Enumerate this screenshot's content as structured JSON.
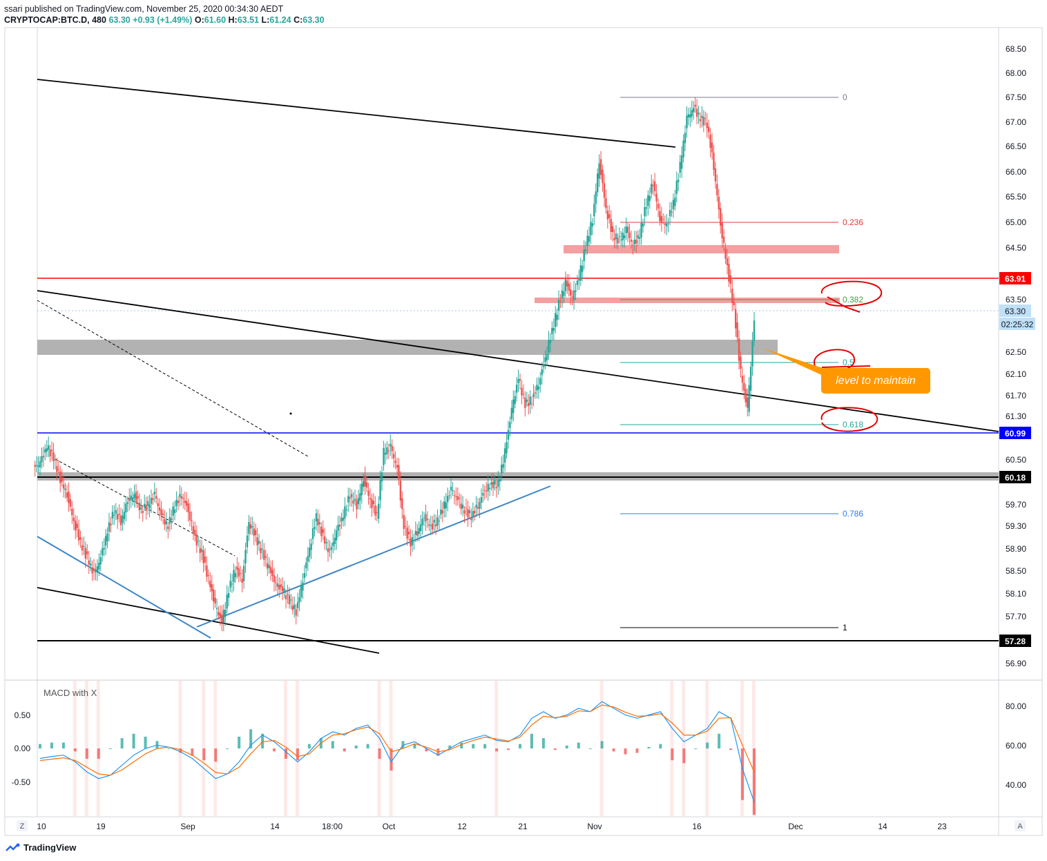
{
  "header": {
    "published": "ssari published on TradingView.com, November 25, 2020 00:34:30 AEDT",
    "symbol": "CRYPTOCAP:BTC.D, 480",
    "last": "63.30",
    "change": "+0.93 (+1.49%)",
    "o_label": "O:",
    "o": "61.60",
    "h_label": "H:",
    "h": "63.51",
    "l_label": "L:",
    "l": "61.24",
    "c_label": "C:",
    "c": "63.30"
  },
  "footer": {
    "brand": "TradingView"
  },
  "colors": {
    "up": "#26a69a",
    "down": "#ef5350",
    "red_line": "#ff0000",
    "blue_line": "#0000ff",
    "trend_blue": "#3d85c6",
    "annotation_orange": "#ff9800",
    "zone_pink": "#f4a0a0",
    "zone_gray": "#b2b2b2"
  },
  "chart_data": {
    "type": "candlestick",
    "price_axis": {
      "ticks": [
        "68.50",
        "68.00",
        "67.50",
        "67.00",
        "66.50",
        "66.00",
        "65.50",
        "65.00",
        "64.50",
        "63.50",
        "62.50",
        "62.10",
        "61.70",
        "61.30",
        "60.50",
        "59.70",
        "59.30",
        "58.90",
        "58.50",
        "58.10",
        "57.70",
        "56.90"
      ],
      "range": [
        56.6,
        68.9
      ]
    },
    "time_axis": {
      "ticks": [
        "10",
        "19",
        "Sep",
        "14",
        "18:00",
        "Oct",
        "12",
        "21",
        "Nov",
        "16",
        "Dec",
        "14",
        "23"
      ]
    },
    "price_labels": [
      {
        "value": "63.91",
        "style": "red"
      },
      {
        "value": "63.30",
        "style": "light-blue"
      },
      {
        "value": "02:25:32",
        "style": "light-blue"
      },
      {
        "value": "60.99",
        "style": "blue"
      },
      {
        "value": "60.18",
        "style": "black"
      },
      {
        "value": "57.28",
        "style": "black"
      }
    ],
    "horizontal_lines": [
      {
        "value": 63.91,
        "color": "red"
      },
      {
        "value": 60.99,
        "color": "blue"
      },
      {
        "value": 60.18,
        "color": "black"
      },
      {
        "value": 57.28,
        "color": "black"
      }
    ],
    "fibonacci": [
      {
        "level": "0",
        "price": 67.5
      },
      {
        "level": "0.236",
        "price": 65.0
      },
      {
        "level": "0.382",
        "price": 63.5
      },
      {
        "level": "0.5",
        "price": 62.35
      },
      {
        "level": "0.618",
        "price": 61.15
      },
      {
        "level": "0.786",
        "price": 59.5
      },
      {
        "level": "1",
        "price": 57.5
      }
    ],
    "zones": [
      {
        "color": "pink",
        "price": 64.5
      },
      {
        "color": "pink",
        "price": 63.5
      },
      {
        "color": "gray",
        "from": 62.45,
        "to": 62.75
      },
      {
        "color": "gray",
        "from": 60.12,
        "to": 60.25
      }
    ],
    "annotation": "level to maintain",
    "candles_close": [
      60.6,
      60.9,
      60.7,
      60.3,
      60.0,
      59.5,
      59.1,
      58.8,
      58.5,
      58.8,
      59.3,
      59.7,
      59.5,
      59.9,
      60.0,
      59.7,
      59.8,
      60.0,
      59.6,
      59.4,
      59.8,
      60.0,
      59.7,
      59.2,
      58.9,
      58.4,
      57.9,
      57.6,
      58.2,
      58.6,
      58.4,
      59.5,
      59.2,
      58.9,
      58.6,
      58.3,
      58.2,
      58.0,
      57.8,
      58.4,
      59.0,
      59.6,
      59.2,
      58.9,
      59.3,
      59.6,
      60.0,
      59.8,
      60.3,
      59.9,
      59.6,
      60.8,
      60.9,
      60.5,
      59.4,
      59.1,
      59.3,
      59.6,
      59.4,
      59.5,
      59.8,
      60.1,
      59.9,
      59.7,
      59.6,
      59.8,
      60.1,
      60.2,
      60.2,
      60.8,
      61.6,
      62.2,
      61.7,
      61.8,
      62.1,
      62.6,
      63.1,
      63.6,
      64.0,
      63.7,
      64.1,
      64.7,
      65.2,
      66.3,
      65.4,
      64.9,
      64.8,
      65.0,
      64.7,
      64.9,
      65.5,
      65.9,
      65.2,
      65.1,
      65.5,
      66.2,
      67.1,
      67.3,
      67.1,
      67.0,
      66.2,
      65.1,
      64.3,
      63.5,
      62.3,
      61.6,
      63.3
    ],
    "macd_panel": {
      "title": "MACD with X",
      "left_ticks": [
        "0.50",
        "0.00",
        "-0.50"
      ],
      "right_ticks": [
        "80.00",
        "60.00",
        "40.00"
      ],
      "macd": [
        -0.15,
        -0.12,
        -0.1,
        -0.2,
        -0.35,
        -0.45,
        -0.4,
        -0.25,
        -0.1,
        0.0,
        0.05,
        0.02,
        -0.05,
        -0.15,
        -0.3,
        -0.45,
        -0.38,
        -0.2,
        0.05,
        0.2,
        0.1,
        -0.05,
        -0.2,
        -0.05,
        0.15,
        0.25,
        0.2,
        0.3,
        0.35,
        0.15,
        -0.2,
        0.05,
        0.1,
        0.0,
        -0.1,
        0.0,
        0.1,
        0.15,
        0.2,
        0.12,
        0.1,
        0.2,
        0.45,
        0.55,
        0.45,
        0.5,
        0.6,
        0.55,
        0.7,
        0.6,
        0.5,
        0.45,
        0.5,
        0.55,
        0.3,
        0.1,
        0.2,
        0.3,
        0.55,
        0.45,
        -0.3,
        -0.8
      ],
      "signal": [
        -0.18,
        -0.16,
        -0.14,
        -0.18,
        -0.28,
        -0.38,
        -0.4,
        -0.32,
        -0.2,
        -0.08,
        0.0,
        0.02,
        -0.02,
        -0.1,
        -0.22,
        -0.36,
        -0.38,
        -0.28,
        -0.08,
        0.1,
        0.12,
        0.02,
        -0.12,
        -0.08,
        0.08,
        0.2,
        0.22,
        0.28,
        0.32,
        0.22,
        -0.05,
        0.0,
        0.07,
        0.02,
        -0.05,
        -0.02,
        0.06,
        0.12,
        0.17,
        0.14,
        0.11,
        0.17,
        0.35,
        0.48,
        0.46,
        0.48,
        0.56,
        0.55,
        0.65,
        0.62,
        0.54,
        0.48,
        0.49,
        0.52,
        0.38,
        0.2,
        0.2,
        0.26,
        0.45,
        0.46,
        0.05,
        -0.35
      ]
    }
  }
}
